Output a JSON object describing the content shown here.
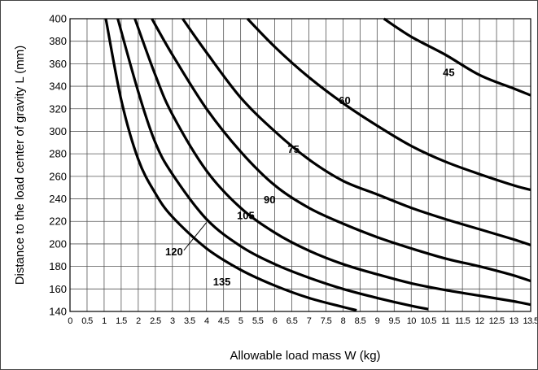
{
  "chart_data": {
    "type": "line",
    "title": "",
    "xlabel": "Allowable load mass  W (kg)",
    "ylabel": "Distance to the load center of gravity  L (mm)",
    "xlim": [
      0,
      13.5
    ],
    "ylim": [
      140,
      400
    ],
    "grid": true,
    "x_ticks": [
      "0",
      "0.5",
      "1",
      "1.5",
      "2",
      "2.5",
      "3",
      "3.5",
      "4",
      "4.5",
      "5",
      "5.5",
      "6",
      "6.5",
      "7",
      "7.5",
      "8",
      "8.5",
      "9",
      "9.5",
      "10",
      "10.5",
      "11",
      "11.5",
      "12",
      "12.5",
      "13",
      "13.5"
    ],
    "y_ticks": [
      "140",
      "160",
      "180",
      "200",
      "220",
      "240",
      "260",
      "280",
      "300",
      "320",
      "340",
      "360",
      "380",
      "400"
    ],
    "series": [
      {
        "name": "45",
        "x": [
          9.2,
          10,
          11,
          12,
          13,
          13.5
        ],
        "y": [
          400,
          384,
          368,
          350,
          338,
          332
        ]
      },
      {
        "name": "60",
        "x": [
          5.2,
          6,
          7,
          8,
          9,
          10,
          11,
          12,
          13,
          13.5
        ],
        "y": [
          400,
          375,
          348,
          325,
          305,
          287,
          273,
          262,
          252,
          248
        ]
      },
      {
        "name": "75",
        "x": [
          3.3,
          4,
          5,
          6,
          7,
          8,
          9,
          10,
          11,
          12,
          13,
          13.5
        ],
        "y": [
          400,
          370,
          330,
          300,
          275,
          256,
          244,
          232,
          222,
          213,
          204,
          199
        ]
      },
      {
        "name": "90",
        "x": [
          2.4,
          3,
          4,
          5,
          6,
          7,
          8,
          9,
          10,
          11,
          12,
          13,
          13.5
        ],
        "y": [
          400,
          368,
          320,
          282,
          252,
          232,
          218,
          206,
          196,
          187,
          180,
          172,
          167
        ]
      },
      {
        "name": "105",
        "x": [
          1.9,
          2.5,
          3,
          4,
          5,
          6,
          7,
          8,
          9,
          10,
          11,
          12,
          13,
          13.5
        ],
        "y": [
          400,
          350,
          315,
          265,
          232,
          210,
          194,
          182,
          173,
          165,
          159,
          154,
          149,
          146
        ]
      },
      {
        "name": "120",
        "x": [
          1.4,
          2,
          2.5,
          3,
          4,
          5,
          6,
          7,
          8,
          9,
          10,
          10.5
        ],
        "y": [
          400,
          335,
          290,
          262,
          222,
          198,
          182,
          170,
          160,
          152,
          145,
          142
        ]
      },
      {
        "name": "135",
        "x": [
          1.05,
          1.5,
          2,
          2.5,
          3,
          4,
          5,
          6,
          7,
          8,
          8.4
        ],
        "y": [
          400,
          328,
          275,
          245,
          224,
          196,
          177,
          163,
          152,
          144,
          141
        ]
      }
    ],
    "curve_labels": [
      {
        "text": "45",
        "x": 11.1,
        "y": 349
      },
      {
        "text": "60",
        "x": 8.05,
        "y": 324
      },
      {
        "text": "75",
        "x": 6.55,
        "y": 281
      },
      {
        "text": "90",
        "x": 5.85,
        "y": 236
      },
      {
        "text": "105",
        "x": 5.15,
        "y": 222
      },
      {
        "text": "120",
        "x": 3.05,
        "y": 190
      },
      {
        "text": "135",
        "x": 4.45,
        "y": 163
      }
    ]
  }
}
